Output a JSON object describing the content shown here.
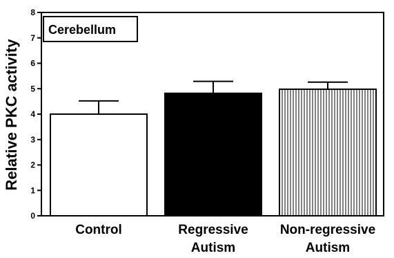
{
  "chart_data": {
    "type": "bar",
    "ylabel": "Relative PKC activity",
    "ylim": [
      0,
      8
    ],
    "yticks": [
      0,
      1,
      2,
      3,
      4,
      5,
      6,
      7,
      8
    ],
    "annotation": "Cerebellum",
    "categories": [
      {
        "label_lines": [
          "Control"
        ],
        "value": 4.0,
        "error": 0.52,
        "fill": "white"
      },
      {
        "label_lines": [
          "Regressive",
          "Autism"
        ],
        "value": 4.82,
        "error": 0.47,
        "fill": "black"
      },
      {
        "label_lines": [
          "Non-regressive",
          "Autism"
        ],
        "value": 4.98,
        "error": 0.28,
        "fill": "vertical-stripes"
      }
    ],
    "colors": {
      "axis": "#000000",
      "bar_black": "#000000",
      "bar_white": "#ffffff"
    }
  }
}
